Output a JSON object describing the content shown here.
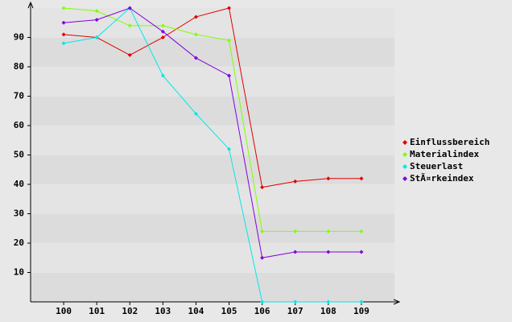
{
  "chart_data": {
    "type": "line",
    "categories": [
      "100",
      "101",
      "102",
      "103",
      "104",
      "105",
      "106",
      "107",
      "108",
      "109"
    ],
    "series": [
      {
        "name": "Einflussbereich",
        "color": "#e00000",
        "values": [
          91,
          90,
          84,
          90,
          97,
          100,
          39,
          41,
          42,
          42
        ]
      },
      {
        "name": "Materialindex",
        "color": "#80ff00",
        "values": [
          100,
          99,
          94,
          94,
          91,
          89,
          24,
          24,
          24,
          24
        ]
      },
      {
        "name": "Steuerlast",
        "color": "#00e8e8",
        "values": [
          88,
          90,
          100,
          77,
          64,
          52,
          0,
          0,
          0,
          0
        ]
      },
      {
        "name": "StÃ¤rkeindex",
        "color": "#8000e0",
        "values": [
          95,
          96,
          100,
          92,
          83,
          77,
          15,
          17,
          17,
          17
        ]
      }
    ],
    "ylim": [
      0,
      100
    ],
    "yticks": [
      10,
      20,
      30,
      40,
      50,
      60,
      70,
      80,
      90
    ],
    "grid": true,
    "legend": "right"
  }
}
